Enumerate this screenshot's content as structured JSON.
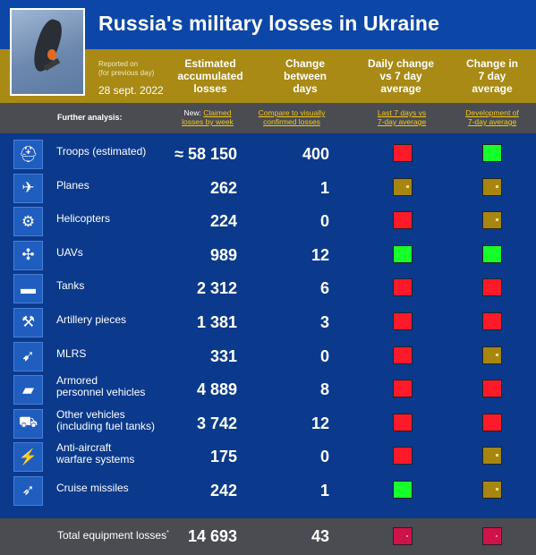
{
  "title": "Russia's military losses in Ukraine",
  "reported": {
    "line1": "Reported on",
    "line2": "(for previous day)",
    "date": "28 sept. 2022"
  },
  "headers": {
    "estimated": [
      "Estimated",
      "accumulated",
      "losses"
    ],
    "change": [
      "Change",
      "between",
      "days"
    ],
    "daily": [
      "Daily change",
      "vs 7 day",
      "average"
    ],
    "change7": [
      "Change in",
      "7 day",
      "average"
    ]
  },
  "analysis": {
    "label": "Further analysis:",
    "new_prefix": "New:",
    "claimed_1": "Claimed",
    "claimed_2": "losses by week",
    "compare_1": "Compare to visually",
    "compare_2": "confirmed losses",
    "last7_1": "Last 7 days vs",
    "last7_2": "7-day average",
    "dev_1": "Development of",
    "dev_2": "7-day average"
  },
  "rows": [
    {
      "icon": "helmet-icon",
      "glyph": "⛑",
      "label1": "Troops (estimated)",
      "label2": "",
      "value": "≈ 58 150",
      "change": "400",
      "daily": "red",
      "change7": "green"
    },
    {
      "icon": "plane-icon",
      "glyph": "✈",
      "label1": "Planes",
      "label2": "",
      "value": "262",
      "change": "1",
      "daily": "olive",
      "change7": "olive"
    },
    {
      "icon": "helicopter-icon",
      "glyph": "⚙",
      "label1": "Helicopters",
      "label2": "",
      "value": "224",
      "change": "0",
      "daily": "red",
      "change7": "olive"
    },
    {
      "icon": "drone-icon",
      "glyph": "✣",
      "label1": "UAVs",
      "label2": "",
      "value": "989",
      "change": "12",
      "daily": "green",
      "change7": "green"
    },
    {
      "icon": "tank-icon",
      "glyph": "▬",
      "label1": "Tanks",
      "label2": "",
      "value": "2 312",
      "change": "6",
      "daily": "red",
      "change7": "red"
    },
    {
      "icon": "artillery-icon",
      "glyph": "⚒",
      "label1": "Artillery pieces",
      "label2": "",
      "value": "1 381",
      "change": "3",
      "daily": "red",
      "change7": "red"
    },
    {
      "icon": "mlrs-icon",
      "glyph": "➹",
      "label1": "MLRS",
      "label2": "",
      "value": "331",
      "change": "0",
      "daily": "red",
      "change7": "olive"
    },
    {
      "icon": "apc-icon",
      "glyph": "▰",
      "label1": "Armored",
      "label2": "personnel vehicles",
      "value": "4 889",
      "change": "8",
      "daily": "red",
      "change7": "red"
    },
    {
      "icon": "truck-icon",
      "glyph": "⛟",
      "label1": "Other vehicles",
      "label2": "(including fuel tanks)",
      "value": "3 742",
      "change": "12",
      "daily": "red",
      "change7": "red"
    },
    {
      "icon": "anti-aircraft-icon",
      "glyph": "⚡",
      "label1": "Anti-aircraft",
      "label2": "warfare systems",
      "value": "175",
      "change": "0",
      "daily": "red",
      "change7": "olive"
    },
    {
      "icon": "missile-icon",
      "glyph": "➶",
      "label1": "Cruise missiles",
      "label2": "",
      "value": "242",
      "change": "1",
      "daily": "green",
      "change7": "olive"
    }
  ],
  "total": {
    "label": "Total equipment losses",
    "mark": "*",
    "value": "14 693",
    "change": "43",
    "daily": "crimson",
    "change7": "crimson"
  }
}
